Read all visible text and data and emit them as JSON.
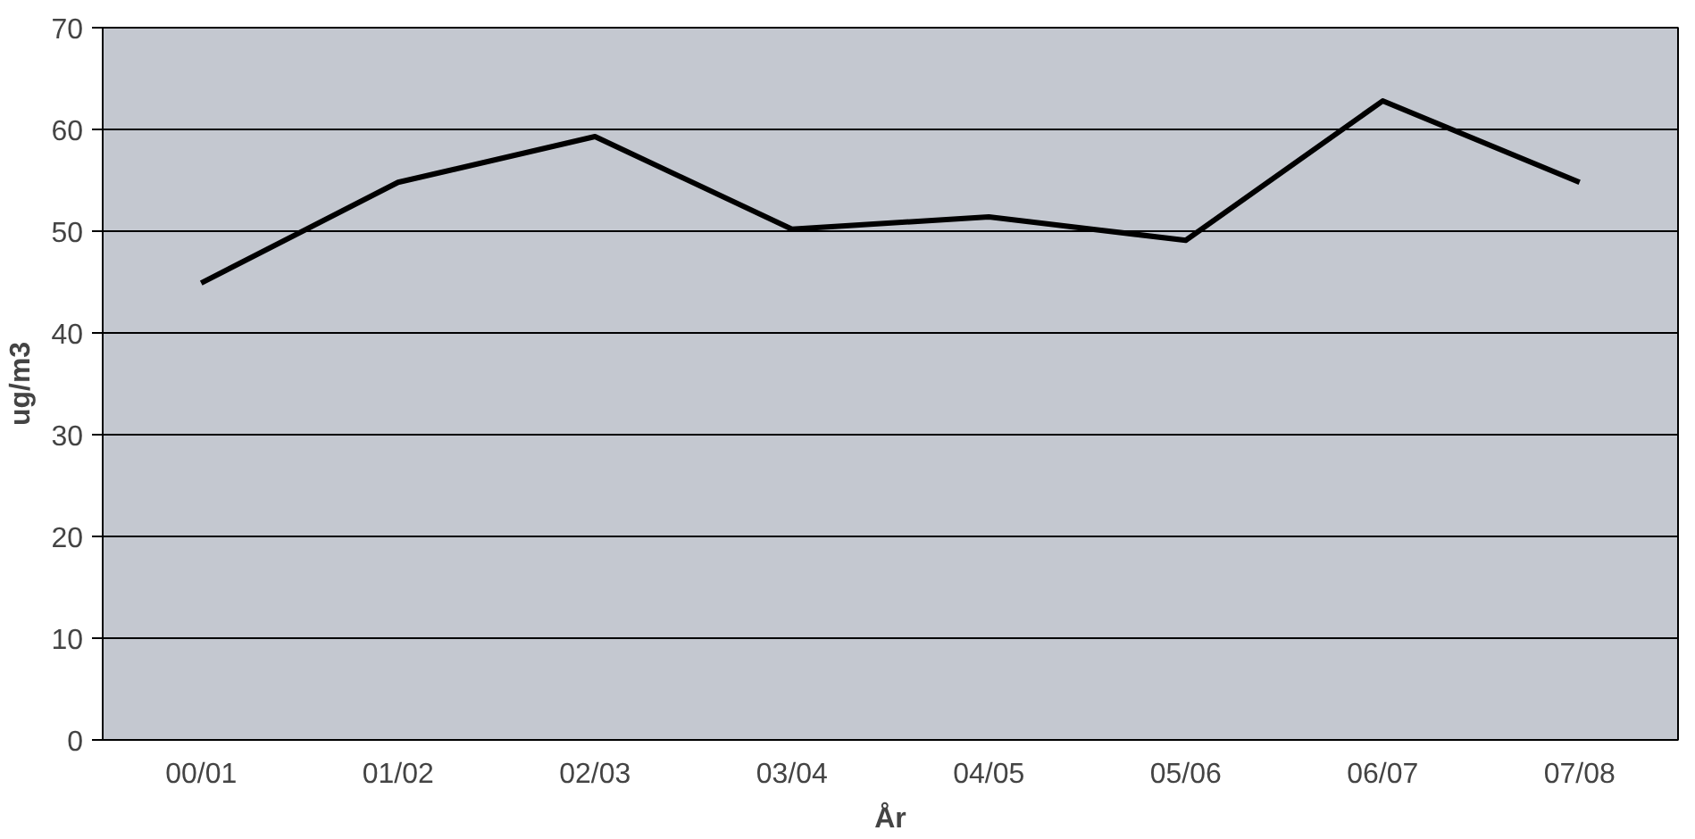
{
  "chart_data": {
    "type": "line",
    "xlabel": "År",
    "ylabel": "ug/m3",
    "categories": [
      "00/01",
      "01/02",
      "02/03",
      "03/04",
      "04/05",
      "05/06",
      "06/07",
      "07/08"
    ],
    "series": [
      {
        "color": "#000000",
        "values": [
          44.9,
          54.8,
          59.3,
          50.2,
          51.4,
          49.1,
          62.8,
          54.8
        ]
      }
    ],
    "ylim": [
      0,
      70
    ],
    "yticks": [
      0,
      10,
      20,
      30,
      40,
      50,
      60,
      70
    ],
    "grid": "y",
    "marker": "none",
    "line_style": "solid"
  }
}
